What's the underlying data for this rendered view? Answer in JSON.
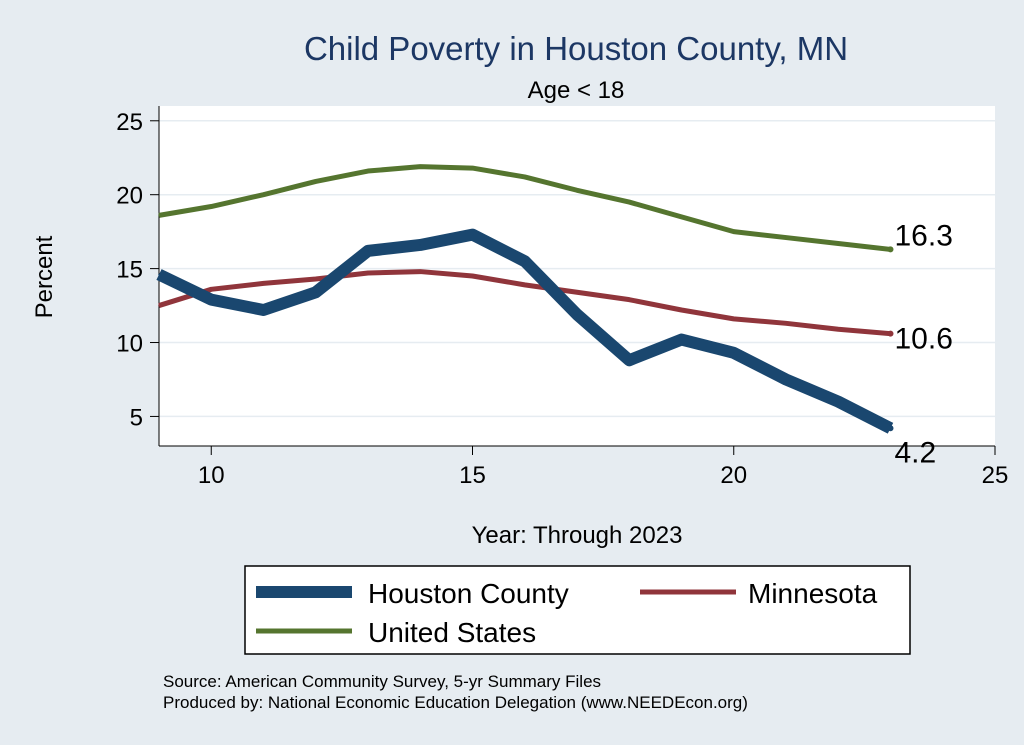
{
  "chart_data": {
    "type": "line",
    "title": "Child Poverty in Houston County, MN",
    "subtitle": "Age < 18",
    "xlabel": "Year: Through 2023",
    "ylabel": "Percent",
    "xlim": [
      9,
      25
    ],
    "ylim": [
      3,
      26
    ],
    "xticks": [
      10,
      15,
      20,
      25
    ],
    "yticks": [
      5,
      10,
      15,
      20,
      25
    ],
    "grid": true,
    "x": [
      9,
      10,
      11,
      12,
      13,
      14,
      15,
      16,
      17,
      18,
      19,
      20,
      21,
      22,
      23
    ],
    "series": [
      {
        "name": "Houston County",
        "color": "#1a476f",
        "values": [
          14.6,
          12.9,
          12.2,
          13.4,
          16.2,
          16.6,
          17.3,
          15.5,
          11.9,
          8.8,
          10.2,
          9.3,
          7.5,
          6.0,
          4.2
        ],
        "end_label": "4.2"
      },
      {
        "name": "Minnesota",
        "color": "#90353b",
        "values": [
          12.5,
          13.6,
          14.0,
          14.3,
          14.7,
          14.8,
          14.5,
          13.9,
          13.4,
          12.9,
          12.2,
          11.6,
          11.3,
          10.9,
          10.6
        ],
        "end_label": "10.6"
      },
      {
        "name": "United States",
        "color": "#55752f",
        "values": [
          18.6,
          19.2,
          20.0,
          20.9,
          21.6,
          21.9,
          21.8,
          21.2,
          20.3,
          19.5,
          18.5,
          17.5,
          17.1,
          16.7,
          16.3
        ],
        "end_label": "16.3"
      }
    ],
    "legend": {
      "position": "bottom",
      "items": [
        "Houston County",
        "Minnesota",
        "United States"
      ]
    },
    "notes": [
      "Source: American Community Survey, 5-yr Summary Files",
      "Produced by: National Economic Education Delegation (www.NEEDEcon.org)"
    ]
  }
}
